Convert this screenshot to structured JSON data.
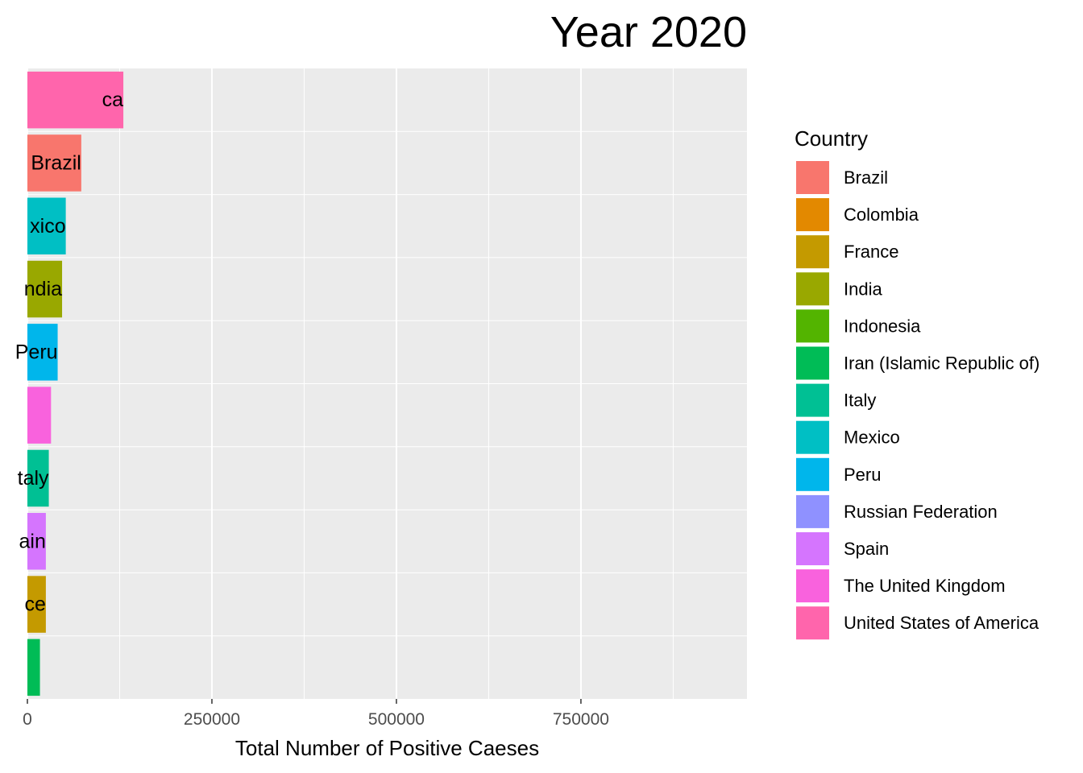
{
  "chart_data": {
    "type": "bar",
    "orientation": "horizontal",
    "title": "Year 2020",
    "xlabel": "Total Number of Positive Caeses",
    "xlim": [
      0,
      975000
    ],
    "x_ticks": [
      0,
      250000,
      500000,
      750000
    ],
    "x_tick_labels": [
      "0",
      "250000",
      "500000",
      "750000"
    ],
    "grid": true,
    "legend_position": "right",
    "legend_title": "Country",
    "legend": [
      {
        "name": "Brazil",
        "color": "#F8766D"
      },
      {
        "name": "Colombia",
        "color": "#E38900"
      },
      {
        "name": "France",
        "color": "#C49A00"
      },
      {
        "name": "India",
        "color": "#99A800"
      },
      {
        "name": "Indonesia",
        "color": "#53B400"
      },
      {
        "name": "Iran (Islamic Republic of)",
        "color": "#00BC56"
      },
      {
        "name": "Italy",
        "color": "#00C094"
      },
      {
        "name": "Mexico",
        "color": "#00BFC4"
      },
      {
        "name": "Peru",
        "color": "#00B6EB"
      },
      {
        "name": "Russian Federation",
        "color": "#8F91FF"
      },
      {
        "name": "Spain",
        "color": "#D575FE"
      },
      {
        "name": "The United Kingdom",
        "color": "#F962DD"
      },
      {
        "name": "United States of America",
        "color": "#FF65AC"
      }
    ],
    "bars": [
      {
        "country": "United States of America",
        "value": 130000,
        "label": "ca",
        "color": "#FF65AC"
      },
      {
        "country": "Brazil",
        "value": 73000,
        "label": "Brazil",
        "color": "#F8766D"
      },
      {
        "country": "Mexico",
        "value": 52000,
        "label": "xico",
        "color": "#00BFC4"
      },
      {
        "country": "India",
        "value": 47000,
        "label": "ndia",
        "color": "#99A800"
      },
      {
        "country": "Peru",
        "value": 41000,
        "label": "Peru",
        "color": "#00B6EB"
      },
      {
        "country": "The United Kingdom",
        "value": 32000,
        "label": "",
        "color": "#F962DD"
      },
      {
        "country": "Italy",
        "value": 29000,
        "label": "taly",
        "color": "#00C094"
      },
      {
        "country": "Spain",
        "value": 25000,
        "label": "ain",
        "color": "#D575FE"
      },
      {
        "country": "France",
        "value": 25000,
        "label": "ce",
        "color": "#C49A00"
      },
      {
        "country": "Iran (Islamic Republic of)",
        "value": 17000,
        "label": "",
        "color": "#00BC56"
      }
    ],
    "panel_background": "#EBEBEB",
    "grid_color": "#FFFFFF"
  }
}
